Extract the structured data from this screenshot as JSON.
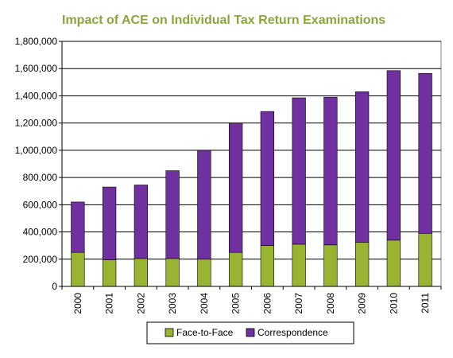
{
  "chart_data": {
    "type": "bar",
    "stacked": true,
    "title": "Impact of ACE on Individual Tax Return Examinations",
    "xlabel": "",
    "ylabel": "",
    "categories": [
      "2000",
      "2001",
      "2002",
      "2003",
      "2004",
      "2005",
      "2006",
      "2007",
      "2008",
      "2009",
      "2010",
      "2011"
    ],
    "series": [
      {
        "name": "Face-to-Face",
        "color": "#99b433",
        "values": [
          250000,
          195000,
          205000,
          205000,
          200000,
          250000,
          300000,
          310000,
          305000,
          325000,
          340000,
          390000
        ]
      },
      {
        "name": "Correspondence",
        "color": "#7030a0",
        "values": [
          370000,
          535000,
          540000,
          645000,
          800000,
          950000,
          985000,
          1075000,
          1085000,
          1105000,
          1245000,
          1175000
        ]
      }
    ],
    "ylim": [
      0,
      1800000
    ],
    "yticks": [
      "0",
      "200,000",
      "400,000",
      "600,000",
      "800,000",
      "1,000,000",
      "1,200,000",
      "1,400,000",
      "1,600,000",
      "1,800,000"
    ],
    "ytick_values": [
      0,
      200000,
      400000,
      600000,
      800000,
      1000000,
      1200000,
      1400000,
      1600000,
      1800000
    ],
    "grid": true,
    "legend_position": "bottom"
  }
}
